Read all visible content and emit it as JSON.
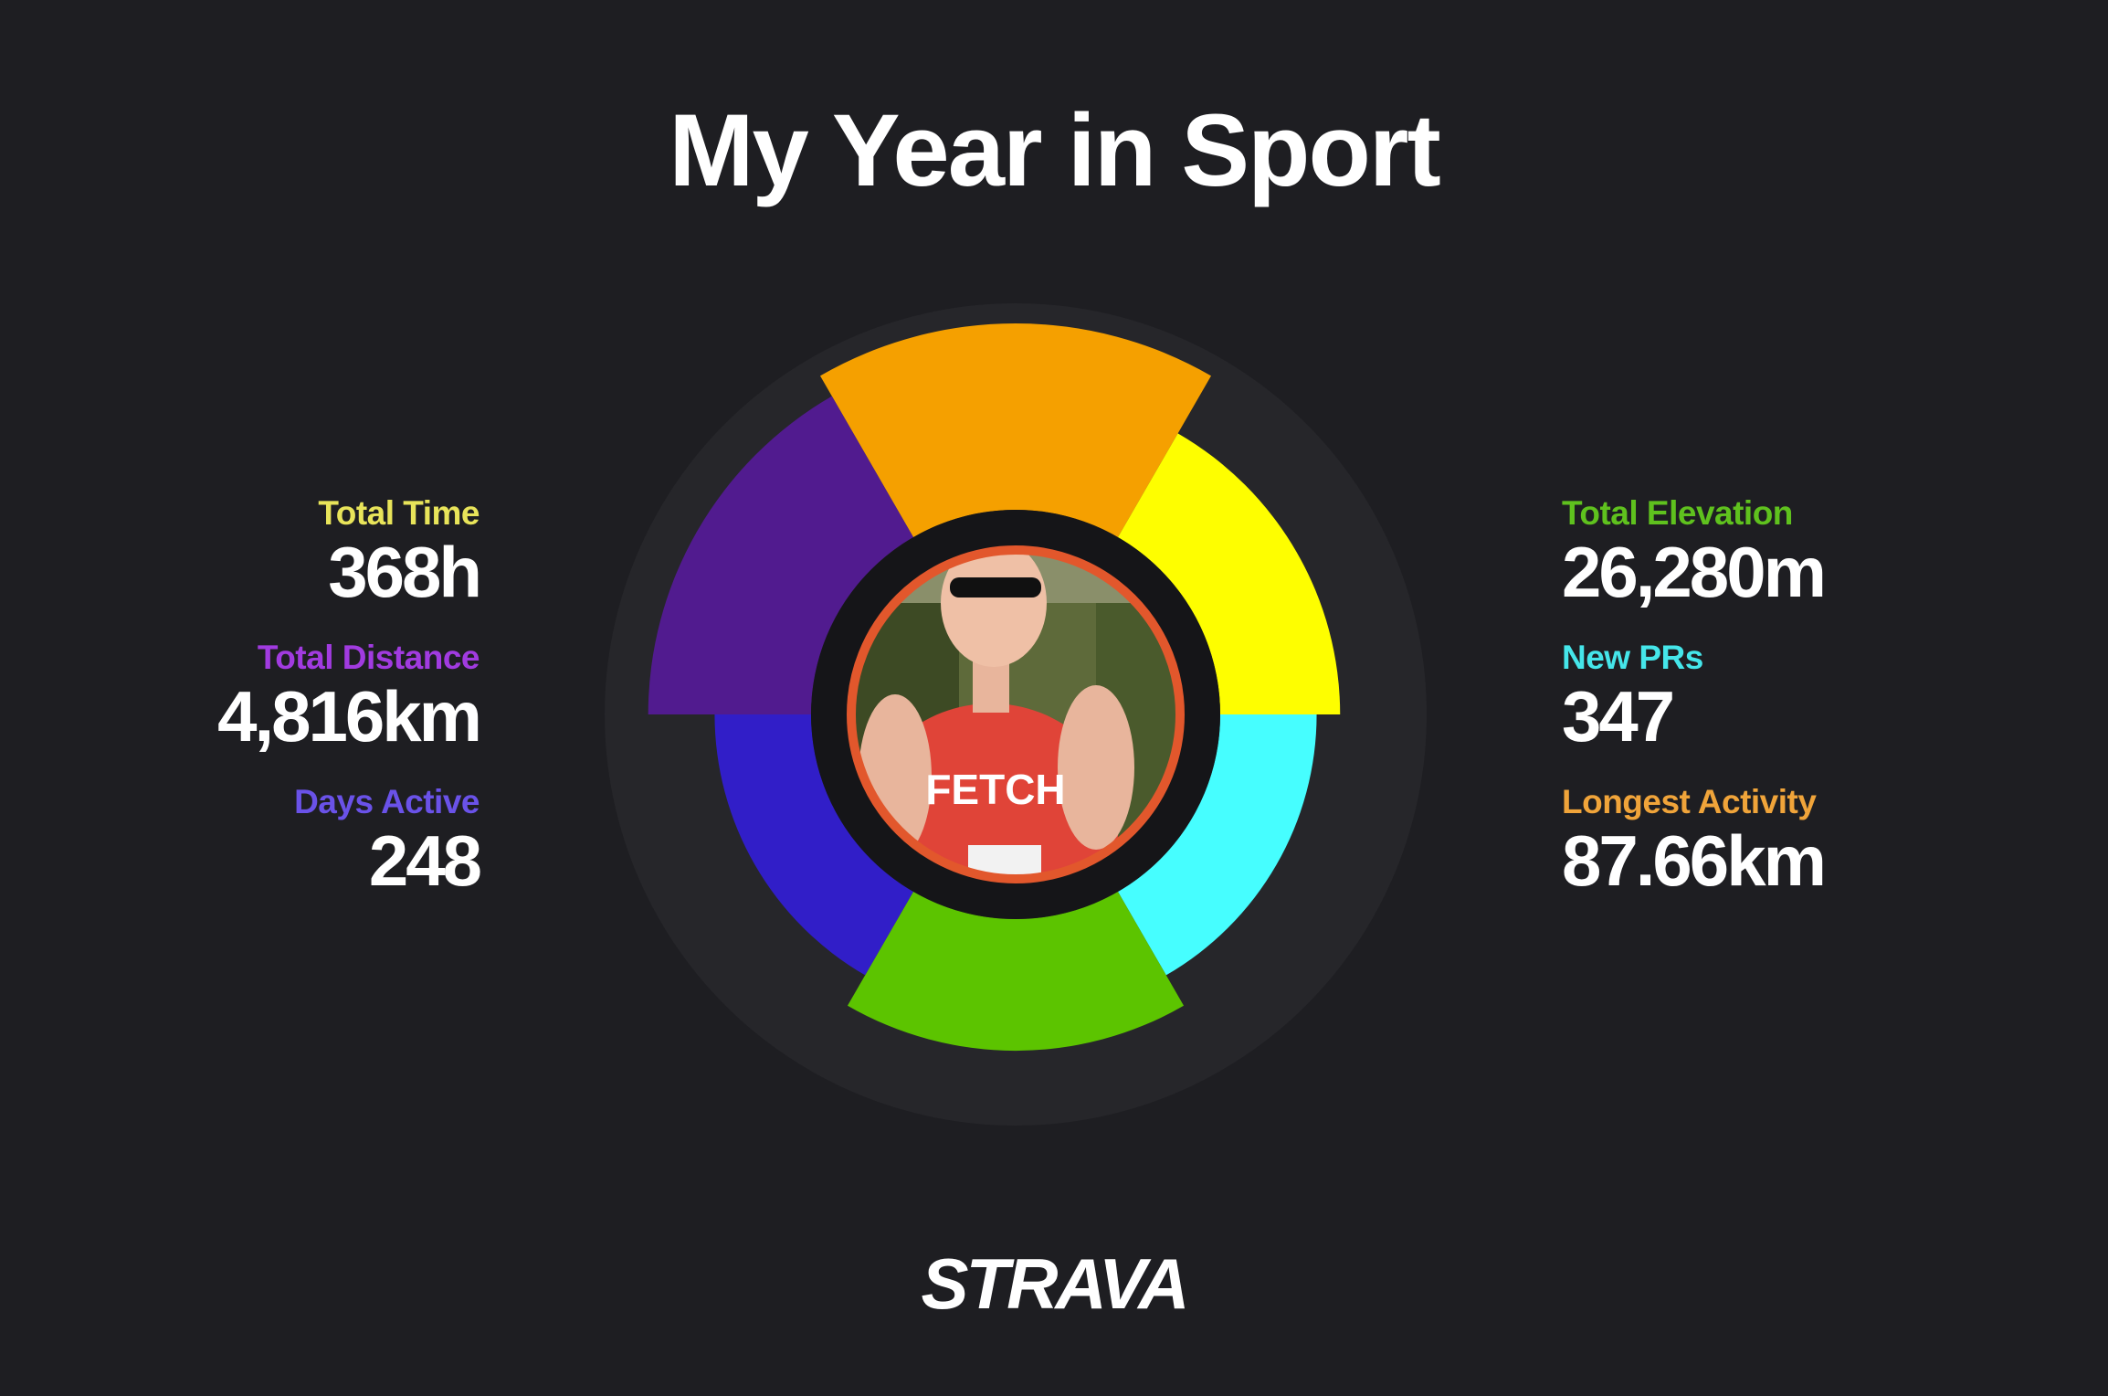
{
  "title": "My Year in Sport",
  "left_stats": [
    {
      "label": "Total Time",
      "value": "368h",
      "color": "#e8e45a"
    },
    {
      "label": "Total Distance",
      "value": "4,816km",
      "color": "#a13be0"
    },
    {
      "label": "Days Active",
      "value": "248",
      "color": "#6a52e8"
    }
  ],
  "right_stats": [
    {
      "label": "Total Elevation",
      "value": "26,280m",
      "color": "#5fc11e"
    },
    {
      "label": "New PRs",
      "value": "347",
      "color": "#45e6ea"
    },
    {
      "label": "Longest Activity",
      "value": "87.66km",
      "color": "#f0a43a"
    }
  ],
  "ring_segments": [
    {
      "name": "orange",
      "color": "#f5a000",
      "level": 1.0
    },
    {
      "name": "yellow",
      "color": "#fefe00",
      "level": 0.83
    },
    {
      "name": "cyan",
      "color": "#46feff",
      "level": 0.77
    },
    {
      "name": "green",
      "color": "#5cc400",
      "level": 0.86
    },
    {
      "name": "blue",
      "color": "#311ec8",
      "level": 0.77
    },
    {
      "name": "purple",
      "color": "#511b8f",
      "level": 0.94
    }
  ],
  "colors": {
    "background": "#1e1e22",
    "track": "#26262a",
    "hole": "#151518",
    "photo_border": "#e2572c"
  },
  "profile_photo": "runner in red FETCH vest",
  "photo_vest_text": "FETCH",
  "logo_text": "STRAVA"
}
